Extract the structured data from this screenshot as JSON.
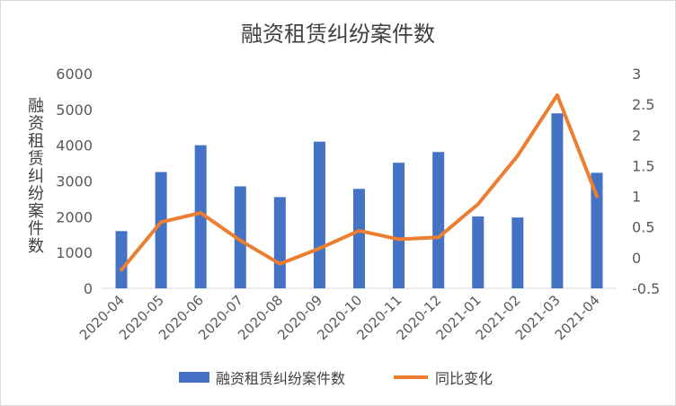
{
  "chart_data": {
    "type": "bar",
    "title": "融资租赁纠纷案件数",
    "ylabel": "融资租赁纠纷案件数",
    "y2label": "",
    "categories": [
      "2020-04",
      "2020-05",
      "2020-06",
      "2020-07",
      "2020-08",
      "2020-09",
      "2020-10",
      "2020-11",
      "2020-12",
      "2021-01",
      "2021-02",
      "2021-03",
      "2021-04"
    ],
    "series": [
      {
        "name": "融资租赁纠纷案件数",
        "type": "bar",
        "axis": "left",
        "color": "#4472C4",
        "values": [
          1600,
          3250,
          4000,
          2850,
          2550,
          4100,
          2780,
          3510,
          3810,
          2010,
          1980,
          4890,
          3230
        ]
      },
      {
        "name": "同比变化",
        "type": "line",
        "axis": "right",
        "color": "#ED7D31",
        "values": [
          -0.2,
          0.58,
          0.73,
          0.28,
          -0.1,
          0.15,
          0.44,
          0.3,
          0.33,
          0.87,
          1.66,
          2.65,
          1.0
        ]
      }
    ],
    "ylim": [
      0,
      6000
    ],
    "yticks": [
      "0",
      "1000",
      "2000",
      "3000",
      "4000",
      "5000",
      "6000"
    ],
    "y2lim": [
      -0.5,
      3
    ],
    "y2ticks": [
      "-0.5",
      "0",
      "0.5",
      "1",
      "1.5",
      "2",
      "2.5",
      "3"
    ],
    "grid": false,
    "legend_position": "bottom"
  }
}
